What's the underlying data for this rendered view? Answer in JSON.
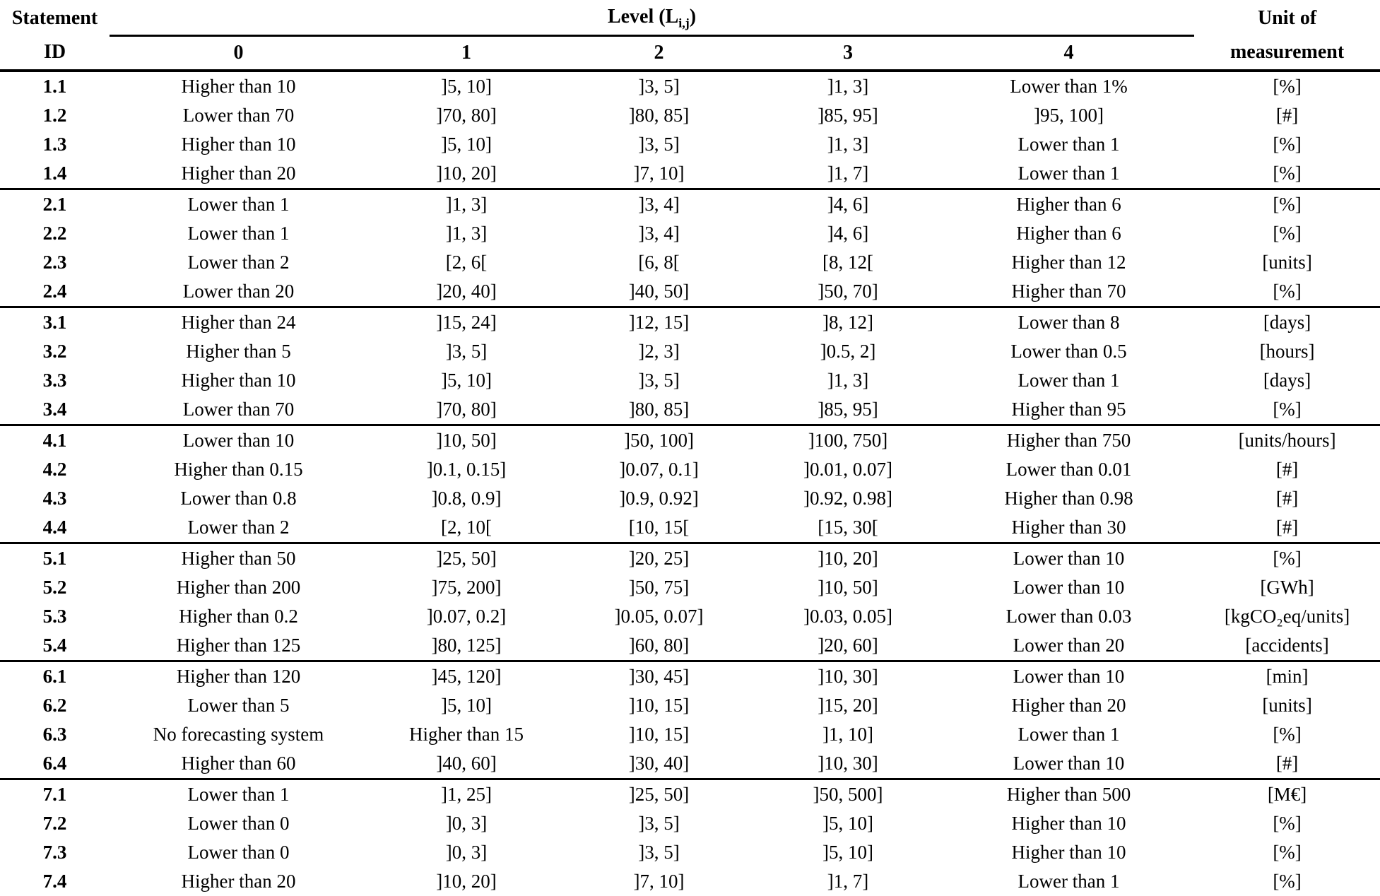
{
  "table": {
    "header": {
      "statement_top": "Statement",
      "statement_bottom": "ID",
      "level_prefix": "Level (L",
      "level_subscript": "i,j",
      "level_suffix": ")",
      "level_columns": [
        "0",
        "1",
        "2",
        "3",
        "4"
      ],
      "unit_top": "Unit of",
      "unit_bottom": "measurement"
    },
    "groups": [
      {
        "rows": [
          {
            "id": "1.1",
            "levels": [
              "Higher than 10",
              "]5, 10]",
              "]3, 5]",
              "]1, 3]",
              "Lower than 1%"
            ],
            "unit": "[%]"
          },
          {
            "id": "1.2",
            "levels": [
              "Lower than 70",
              "]70, 80]",
              "]80, 85]",
              "]85, 95]",
              "]95, 100]"
            ],
            "unit": "[#]"
          },
          {
            "id": "1.3",
            "levels": [
              "Higher than 10",
              "]5, 10]",
              "]3, 5]",
              "]1, 3]",
              "Lower than 1"
            ],
            "unit": "[%]"
          },
          {
            "id": "1.4",
            "levels": [
              "Higher than 20",
              "]10, 20]",
              "]7, 10]",
              "]1, 7]",
              "Lower than 1"
            ],
            "unit": "[%]"
          }
        ]
      },
      {
        "rows": [
          {
            "id": "2.1",
            "levels": [
              "Lower than 1",
              "]1, 3]",
              "]3, 4]",
              "]4, 6]",
              "Higher than 6"
            ],
            "unit": "[%]"
          },
          {
            "id": "2.2",
            "levels": [
              "Lower than 1",
              "]1, 3]",
              "]3, 4]",
              "]4, 6]",
              "Higher than 6"
            ],
            "unit": "[%]"
          },
          {
            "id": "2.3",
            "levels": [
              "Lower than 2",
              "[2, 6[",
              "[6, 8[",
              "[8, 12[",
              "Higher than 12"
            ],
            "unit": "[units]"
          },
          {
            "id": "2.4",
            "levels": [
              "Lower than 20",
              "]20, 40]",
              "]40, 50]",
              "]50, 70]",
              "Higher than 70"
            ],
            "unit": "[%]"
          }
        ]
      },
      {
        "rows": [
          {
            "id": "3.1",
            "levels": [
              "Higher than 24",
              "]15, 24]",
              "]12, 15]",
              "]8, 12]",
              "Lower than 8"
            ],
            "unit": "[days]"
          },
          {
            "id": "3.2",
            "levels": [
              "Higher than 5",
              "]3, 5]",
              "]2, 3]",
              "]0.5, 2]",
              "Lower than 0.5"
            ],
            "unit": "[hours]"
          },
          {
            "id": "3.3",
            "levels": [
              "Higher than 10",
              "]5, 10]",
              "]3, 5]",
              "]1, 3]",
              "Lower than 1"
            ],
            "unit": "[days]"
          },
          {
            "id": "3.4",
            "levels": [
              "Lower than 70",
              "]70, 80]",
              "]80, 85]",
              "]85, 95]",
              "Higher than 95"
            ],
            "unit": "[%]"
          }
        ]
      },
      {
        "rows": [
          {
            "id": "4.1",
            "levels": [
              "Lower than 10",
              "]10, 50]",
              "]50, 100]",
              "]100, 750]",
              "Higher than 750"
            ],
            "unit": "[units/hours]"
          },
          {
            "id": "4.2",
            "levels": [
              "Higher than 0.15",
              "]0.1, 0.15]",
              "]0.07, 0.1]",
              "]0.01, 0.07]",
              "Lower than 0.01"
            ],
            "unit": "[#]"
          },
          {
            "id": "4.3",
            "levels": [
              "Lower than 0.8",
              "]0.8, 0.9]",
              "]0.9, 0.92]",
              "]0.92, 0.98]",
              "Higher than 0.98"
            ],
            "unit": "[#]"
          },
          {
            "id": "4.4",
            "levels": [
              "Lower than 2",
              "[2, 10[",
              "[10, 15[",
              "[15, 30[",
              "Higher than 30"
            ],
            "unit": "[#]"
          }
        ]
      },
      {
        "rows": [
          {
            "id": "5.1",
            "levels": [
              "Higher than 50",
              "]25, 50]",
              "]20, 25]",
              "]10, 20]",
              "Lower than 10"
            ],
            "unit": "[%]"
          },
          {
            "id": "5.2",
            "levels": [
              "Higher than 200",
              "]75, 200]",
              "]50, 75]",
              "]10, 50]",
              "Lower than 10"
            ],
            "unit": "[GWh]"
          },
          {
            "id": "5.3",
            "levels": [
              "Higher than 0.2",
              "]0.07, 0.2]",
              "]0.05, 0.07]",
              "]0.03, 0.05]",
              "Lower than 0.03"
            ],
            "unit": "[kgCO₂eq/units]"
          },
          {
            "id": "5.4",
            "levels": [
              "Higher than 125",
              "]80, 125]",
              "]60, 80]",
              "]20, 60]",
              "Lower than 20"
            ],
            "unit": "[accidents]"
          }
        ]
      },
      {
        "rows": [
          {
            "id": "6.1",
            "levels": [
              "Higher than 120",
              "]45, 120]",
              "]30, 45]",
              "]10, 30]",
              "Lower than 10"
            ],
            "unit": "[min]"
          },
          {
            "id": "6.2",
            "levels": [
              "Lower than 5",
              "]5, 10]",
              "]10, 15]",
              "]15, 20]",
              "Higher than 20"
            ],
            "unit": "[units]"
          },
          {
            "id": "6.3",
            "levels": [
              "No forecasting system",
              "Higher than 15",
              "]10, 15]",
              "]1, 10]",
              "Lower than 1"
            ],
            "unit": "[%]"
          },
          {
            "id": "6.4",
            "levels": [
              "Higher than 60",
              "]40, 60]",
              "]30, 40]",
              "]10, 30]",
              "Lower than 10"
            ],
            "unit": "[#]"
          }
        ]
      },
      {
        "rows": [
          {
            "id": "7.1",
            "levels": [
              "Lower than 1",
              "]1, 25]",
              "]25, 50]",
              "]50, 500]",
              "Higher than 500"
            ],
            "unit": "[M€]"
          },
          {
            "id": "7.2",
            "levels": [
              "Lower than 0",
              "]0, 3]",
              "]3, 5]",
              "]5, 10]",
              "Higher than 10"
            ],
            "unit": "[%]"
          },
          {
            "id": "7.3",
            "levels": [
              "Lower than 0",
              "]0, 3]",
              "]3, 5]",
              "]5, 10]",
              "Higher than 10"
            ],
            "unit": "[%]"
          },
          {
            "id": "7.4",
            "levels": [
              "Higher than 20",
              "]10, 20]",
              "]7, 10]",
              "]1, 7]",
              "Lower than 1"
            ],
            "unit": "[%]"
          }
        ]
      }
    ]
  }
}
